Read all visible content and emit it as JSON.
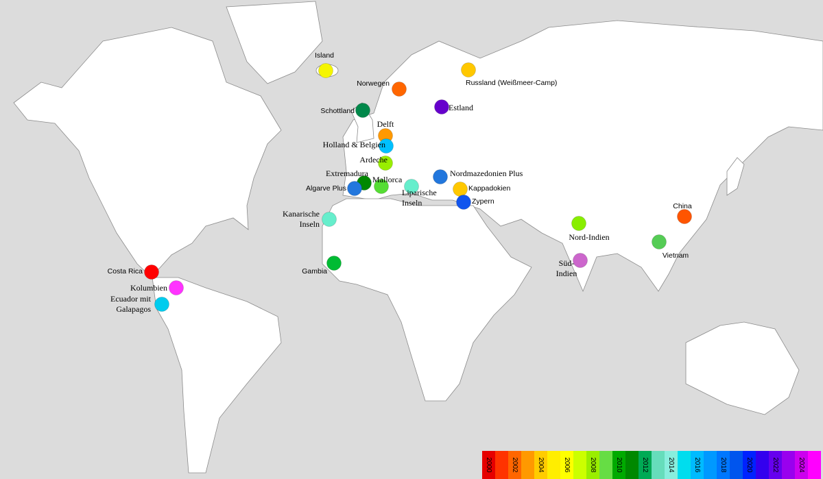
{
  "locations": [
    {
      "label": [
        "Island"
      ],
      "color": "#f5f500"
    },
    {
      "label": [
        "Norwegen"
      ],
      "color": "#ff6600"
    },
    {
      "label": [
        "Russland (Weißmeer-Camp)"
      ],
      "color": "#ffc800"
    },
    {
      "label": [
        "Schottland"
      ],
      "color": "#00884a"
    },
    {
      "label": [
        "Estland"
      ],
      "color": "#6600cc"
    },
    {
      "label": [
        "Delft"
      ],
      "color": "#ff9900"
    },
    {
      "label": [
        "Holland & Belgien"
      ],
      "color": "#00c0ff"
    },
    {
      "label": [
        "Ardeche"
      ],
      "color": "#99ee00"
    },
    {
      "label": [
        "Extremadura"
      ],
      "color": "#008800"
    },
    {
      "label": [
        "Mallorca"
      ],
      "color": "#55dd33"
    },
    {
      "label": [
        "Algarve Plus"
      ],
      "color": "#2277dd"
    },
    {
      "label": [
        "Liparische",
        "Inseln"
      ],
      "color": "#66eecc"
    },
    {
      "label": [
        "Nordmazedonien Plus"
      ],
      "color": "#2277dd"
    },
    {
      "label": [
        "Kappadokien"
      ],
      "color": "#ffc800"
    },
    {
      "label": [
        "Zypern"
      ],
      "color": "#1155ee"
    },
    {
      "label": [
        "Kanarische",
        "Inseln"
      ],
      "color": "#66eecc"
    },
    {
      "label": [
        "Gambia"
      ],
      "color": "#00bb33"
    },
    {
      "label": [
        "Costa Rica"
      ],
      "color": "#ff0000"
    },
    {
      "label": [
        "Kolumbien"
      ],
      "color": "#ff33ff"
    },
    {
      "label": [
        "Ecuador mit",
        "Galapagos"
      ],
      "color": "#00ccee"
    },
    {
      "label": [
        "China"
      ],
      "color": "#ff5500"
    },
    {
      "label": [
        "Nord-Indien"
      ],
      "color": "#88ee00"
    },
    {
      "label": [
        "Vietnam"
      ],
      "color": "#55cc55"
    },
    {
      "label": [
        "Süd-",
        "Indien"
      ],
      "color": "#cc66cc"
    }
  ],
  "legend": {
    "years": [
      "2000",
      null,
      "2002",
      null,
      "2004",
      null,
      "2006",
      null,
      "2008",
      null,
      "2010",
      null,
      "2012",
      null,
      "2014",
      null,
      "2016",
      null,
      "2018",
      null,
      "2020",
      null,
      "2022",
      null,
      "2024",
      null
    ],
    "colors": [
      "#e60000",
      "#ff3300",
      "#ff6600",
      "#ff9900",
      "#ffcc00",
      "#ffee00",
      "#ffff00",
      "#ccff00",
      "#99ee00",
      "#66dd44",
      "#00aa00",
      "#008800",
      "#00aa55",
      "#66ddbb",
      "#88eedd",
      "#00ddee",
      "#00bbff",
      "#0099ff",
      "#0077ff",
      "#0055ee",
      "#0022ff",
      "#3300ee",
      "#6600ee",
      "#9900ee",
      "#cc00ee",
      "#ff00ff"
    ]
  }
}
